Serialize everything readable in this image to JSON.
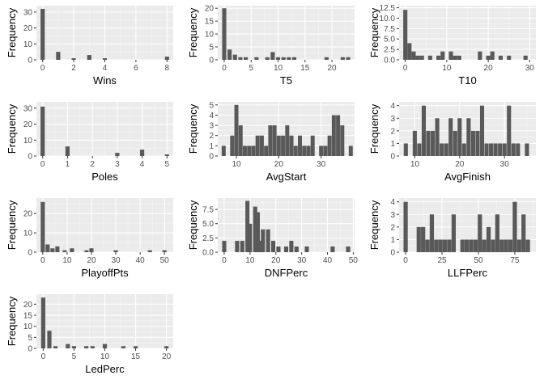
{
  "colors": {
    "panel_bg": "#ebebeb",
    "grid_major": "#ffffff",
    "grid_minor": "#f5f5f5",
    "bar": "#595959",
    "tick_text": "#4d4d4d",
    "tick_mark": "#333333"
  },
  "chart_data": [
    {
      "type": "bar",
      "xlabel": "Wins",
      "ylabel": "Frequency",
      "xlim": [
        -0.4,
        8.4
      ],
      "ylim": [
        0,
        34
      ],
      "xticks": [
        0,
        2,
        4,
        6,
        8
      ],
      "yticks": [
        0,
        10,
        20,
        30
      ],
      "bin_width": 0.27,
      "bins": [
        [
          0,
          32
        ],
        [
          1,
          5
        ],
        [
          2,
          1
        ],
        [
          3,
          3
        ],
        [
          4,
          1
        ],
        [
          8,
          2
        ]
      ]
    },
    {
      "type": "bar",
      "xlabel": "T5",
      "ylabel": "Frequency",
      "xlim": [
        -1.2,
        24.2
      ],
      "ylim": [
        0,
        21
      ],
      "xticks": [
        0,
        5,
        10,
        15,
        20
      ],
      "yticks": [
        0,
        5,
        10,
        15,
        20
      ],
      "bin_width": 0.77,
      "bins": [
        [
          0,
          20
        ],
        [
          1,
          4
        ],
        [
          2,
          2
        ],
        [
          3,
          1
        ],
        [
          4,
          1
        ],
        [
          6,
          1
        ],
        [
          8,
          1
        ],
        [
          9,
          3
        ],
        [
          10,
          1
        ],
        [
          11,
          1
        ],
        [
          12,
          1
        ],
        [
          13,
          1
        ],
        [
          19,
          1
        ],
        [
          22,
          1
        ],
        [
          23,
          1
        ]
      ]
    },
    {
      "type": "bar",
      "xlabel": "T10",
      "ylabel": "Frequency",
      "xlim": [
        -1.5,
        31.5
      ],
      "ylim": [
        0,
        13
      ],
      "xticks": [
        0,
        10,
        20,
        30
      ],
      "yticks": [
        0,
        2.5,
        5.0,
        7.5,
        10.0,
        12.5
      ],
      "bin_width": 1.0,
      "bins": [
        [
          0,
          12
        ],
        [
          1,
          4
        ],
        [
          2,
          2
        ],
        [
          3,
          1
        ],
        [
          4,
          1
        ],
        [
          6,
          1
        ],
        [
          8,
          1
        ],
        [
          9,
          2
        ],
        [
          11,
          2
        ],
        [
          12,
          1
        ],
        [
          13,
          1
        ],
        [
          18,
          2
        ],
        [
          20,
          1
        ],
        [
          21,
          2
        ],
        [
          23,
          1
        ],
        [
          25,
          1
        ],
        [
          29,
          1
        ]
      ]
    },
    {
      "type": "bar",
      "xlabel": "Poles",
      "ylabel": "Frequency",
      "xlim": [
        -0.25,
        5.25
      ],
      "ylim": [
        0,
        34
      ],
      "xticks": [
        0,
        1,
        2,
        3,
        4,
        5
      ],
      "yticks": [
        0,
        10,
        20,
        30
      ],
      "bin_width": 0.17,
      "bins": [
        [
          0,
          31
        ],
        [
          1,
          6
        ],
        [
          3,
          2
        ],
        [
          4,
          4
        ],
        [
          5,
          1
        ]
      ]
    },
    {
      "type": "bar",
      "xlabel": "AvgStart",
      "ylabel": "Frequency",
      "xlim": [
        5.6,
        37.9
      ],
      "ylim": [
        0,
        5.3
      ],
      "xticks": [
        10,
        20,
        30
      ],
      "yticks": [
        0,
        1,
        2,
        3,
        4,
        5
      ],
      "bin_width": 0.95,
      "bins": [
        [
          7,
          1
        ],
        [
          9,
          2
        ],
        [
          10,
          5
        ],
        [
          11,
          3
        ],
        [
          12,
          1
        ],
        [
          13,
          1
        ],
        [
          14,
          1
        ],
        [
          15,
          2
        ],
        [
          16,
          2
        ],
        [
          17,
          1
        ],
        [
          18,
          3
        ],
        [
          19,
          3
        ],
        [
          20,
          2
        ],
        [
          21,
          2
        ],
        [
          22,
          3
        ],
        [
          23,
          2
        ],
        [
          24,
          1
        ],
        [
          25,
          2
        ],
        [
          26,
          1
        ],
        [
          27,
          1
        ],
        [
          28,
          2
        ],
        [
          30,
          1
        ],
        [
          31,
          1
        ],
        [
          32,
          2
        ],
        [
          33,
          4
        ],
        [
          34,
          4
        ],
        [
          35,
          3
        ],
        [
          37,
          1
        ]
      ]
    },
    {
      "type": "bar",
      "xlabel": "AvgFinish",
      "ylabel": "Frequency",
      "xlim": [
        6.5,
        37.0
      ],
      "ylim": [
        0,
        4.3
      ],
      "xticks": [
        10,
        20,
        30
      ],
      "yticks": [
        0,
        1,
        2,
        3,
        4
      ],
      "bin_width": 0.92,
      "bins": [
        [
          8,
          1
        ],
        [
          10,
          2
        ],
        [
          11,
          1
        ],
        [
          12,
          4
        ],
        [
          13,
          2
        ],
        [
          14,
          2
        ],
        [
          15,
          3
        ],
        [
          16,
          1
        ],
        [
          17,
          1
        ],
        [
          18,
          3
        ],
        [
          19,
          2
        ],
        [
          20,
          3
        ],
        [
          21,
          1
        ],
        [
          22,
          3
        ],
        [
          23,
          2
        ],
        [
          24,
          2
        ],
        [
          25,
          4
        ],
        [
          26,
          1
        ],
        [
          27,
          1
        ],
        [
          28,
          1
        ],
        [
          29,
          1
        ],
        [
          30,
          1
        ],
        [
          31,
          4
        ],
        [
          32,
          1
        ],
        [
          33,
          1
        ],
        [
          35,
          1
        ]
      ]
    },
    {
      "type": "bar",
      "xlabel": "PlayoffPts",
      "ylabel": "Frequency",
      "xlim": [
        -2.6,
        53.6
      ],
      "ylim": [
        0,
        28
      ],
      "xticks": [
        0,
        10,
        20,
        30,
        40,
        50
      ],
      "yticks": [
        0,
        10,
        20
      ],
      "bin_width": 1.7,
      "bins": [
        [
          0,
          26
        ],
        [
          2,
          4
        ],
        [
          4,
          2
        ],
        [
          6,
          3
        ],
        [
          9,
          1
        ],
        [
          12,
          2
        ],
        [
          18,
          1
        ],
        [
          20,
          2
        ],
        [
          30,
          1
        ],
        [
          44,
          1
        ],
        [
          50,
          1
        ]
      ]
    },
    {
      "type": "bar",
      "xlabel": "DNFPerc",
      "ylabel": "Frequency",
      "xlim": [
        -2.5,
        50.5
      ],
      "ylim": [
        0,
        9.5
      ],
      "xticks": [
        0,
        10,
        20,
        30,
        40,
        50
      ],
      "yticks": [
        0,
        2.5,
        5.0,
        7.5
      ],
      "bin_width": 1.6,
      "bins": [
        [
          0,
          2
        ],
        [
          5,
          2
        ],
        [
          7,
          2
        ],
        [
          9,
          9
        ],
        [
          10,
          5
        ],
        [
          12,
          8
        ],
        [
          13,
          7
        ],
        [
          14,
          2
        ],
        [
          15,
          4
        ],
        [
          17,
          4
        ],
        [
          19,
          2
        ],
        [
          21,
          1
        ],
        [
          24,
          1
        ],
        [
          26,
          2
        ],
        [
          28,
          1
        ],
        [
          32,
          1
        ],
        [
          42,
          1
        ],
        [
          48,
          1
        ]
      ]
    },
    {
      "type": "bar",
      "xlabel": "LLFPerc",
      "ylabel": "Frequency",
      "xlim": [
        -4.5,
        89.5
      ],
      "ylim": [
        0,
        4.3
      ],
      "xticks": [
        0,
        25,
        50,
        75
      ],
      "yticks": [
        0,
        1,
        2,
        3,
        4
      ],
      "bin_width": 2.9,
      "bins": [
        [
          0,
          4
        ],
        [
          9,
          2
        ],
        [
          12,
          2
        ],
        [
          15,
          1
        ],
        [
          18,
          3
        ],
        [
          21,
          1
        ],
        [
          24,
          1
        ],
        [
          27,
          1
        ],
        [
          30,
          1
        ],
        [
          33,
          3
        ],
        [
          39,
          1
        ],
        [
          42,
          1
        ],
        [
          45,
          1
        ],
        [
          48,
          1
        ],
        [
          51,
          3
        ],
        [
          54,
          1
        ],
        [
          57,
          2
        ],
        [
          60,
          1
        ],
        [
          63,
          3
        ],
        [
          66,
          1
        ],
        [
          69,
          1
        ],
        [
          72,
          1
        ],
        [
          75,
          4
        ],
        [
          78,
          1
        ],
        [
          81,
          3
        ],
        [
          84,
          1
        ]
      ]
    },
    {
      "type": "bar",
      "xlabel": "LedPerc",
      "ylabel": "Frequency",
      "xlim": [
        -1.1,
        21.1
      ],
      "ylim": [
        0,
        24.5
      ],
      "xticks": [
        0,
        5,
        10,
        15,
        20
      ],
      "yticks": [
        0,
        5,
        10,
        15,
        20
      ],
      "bin_width": 0.68,
      "bins": [
        [
          0,
          23
        ],
        [
          1,
          8
        ],
        [
          2,
          1
        ],
        [
          4,
          2
        ],
        [
          5,
          1
        ],
        [
          7,
          1
        ],
        [
          8,
          1
        ],
        [
          10,
          2
        ],
        [
          13,
          1
        ],
        [
          15,
          1
        ],
        [
          20,
          1
        ]
      ]
    }
  ]
}
